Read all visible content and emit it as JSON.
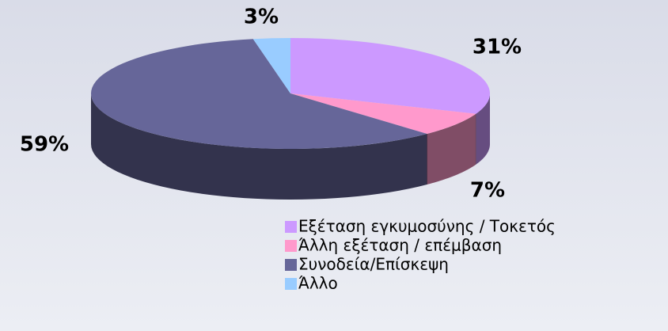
{
  "chart_data": {
    "type": "pie3d",
    "categories": [
      "Εξέταση εγκυμοσύνης / Τοκετός",
      "Άλλη εξέταση / επέμβαση",
      "Συνοδεία/Επίσκεψη",
      "Άλλο"
    ],
    "values": [
      31,
      7,
      59,
      3
    ],
    "value_labels": [
      "31%",
      "7%",
      "59%",
      "3%"
    ],
    "colors": [
      "#cc99ff",
      "#ff99cc",
      "#666699",
      "#99ccff"
    ],
    "legend": "bottom-right"
  }
}
